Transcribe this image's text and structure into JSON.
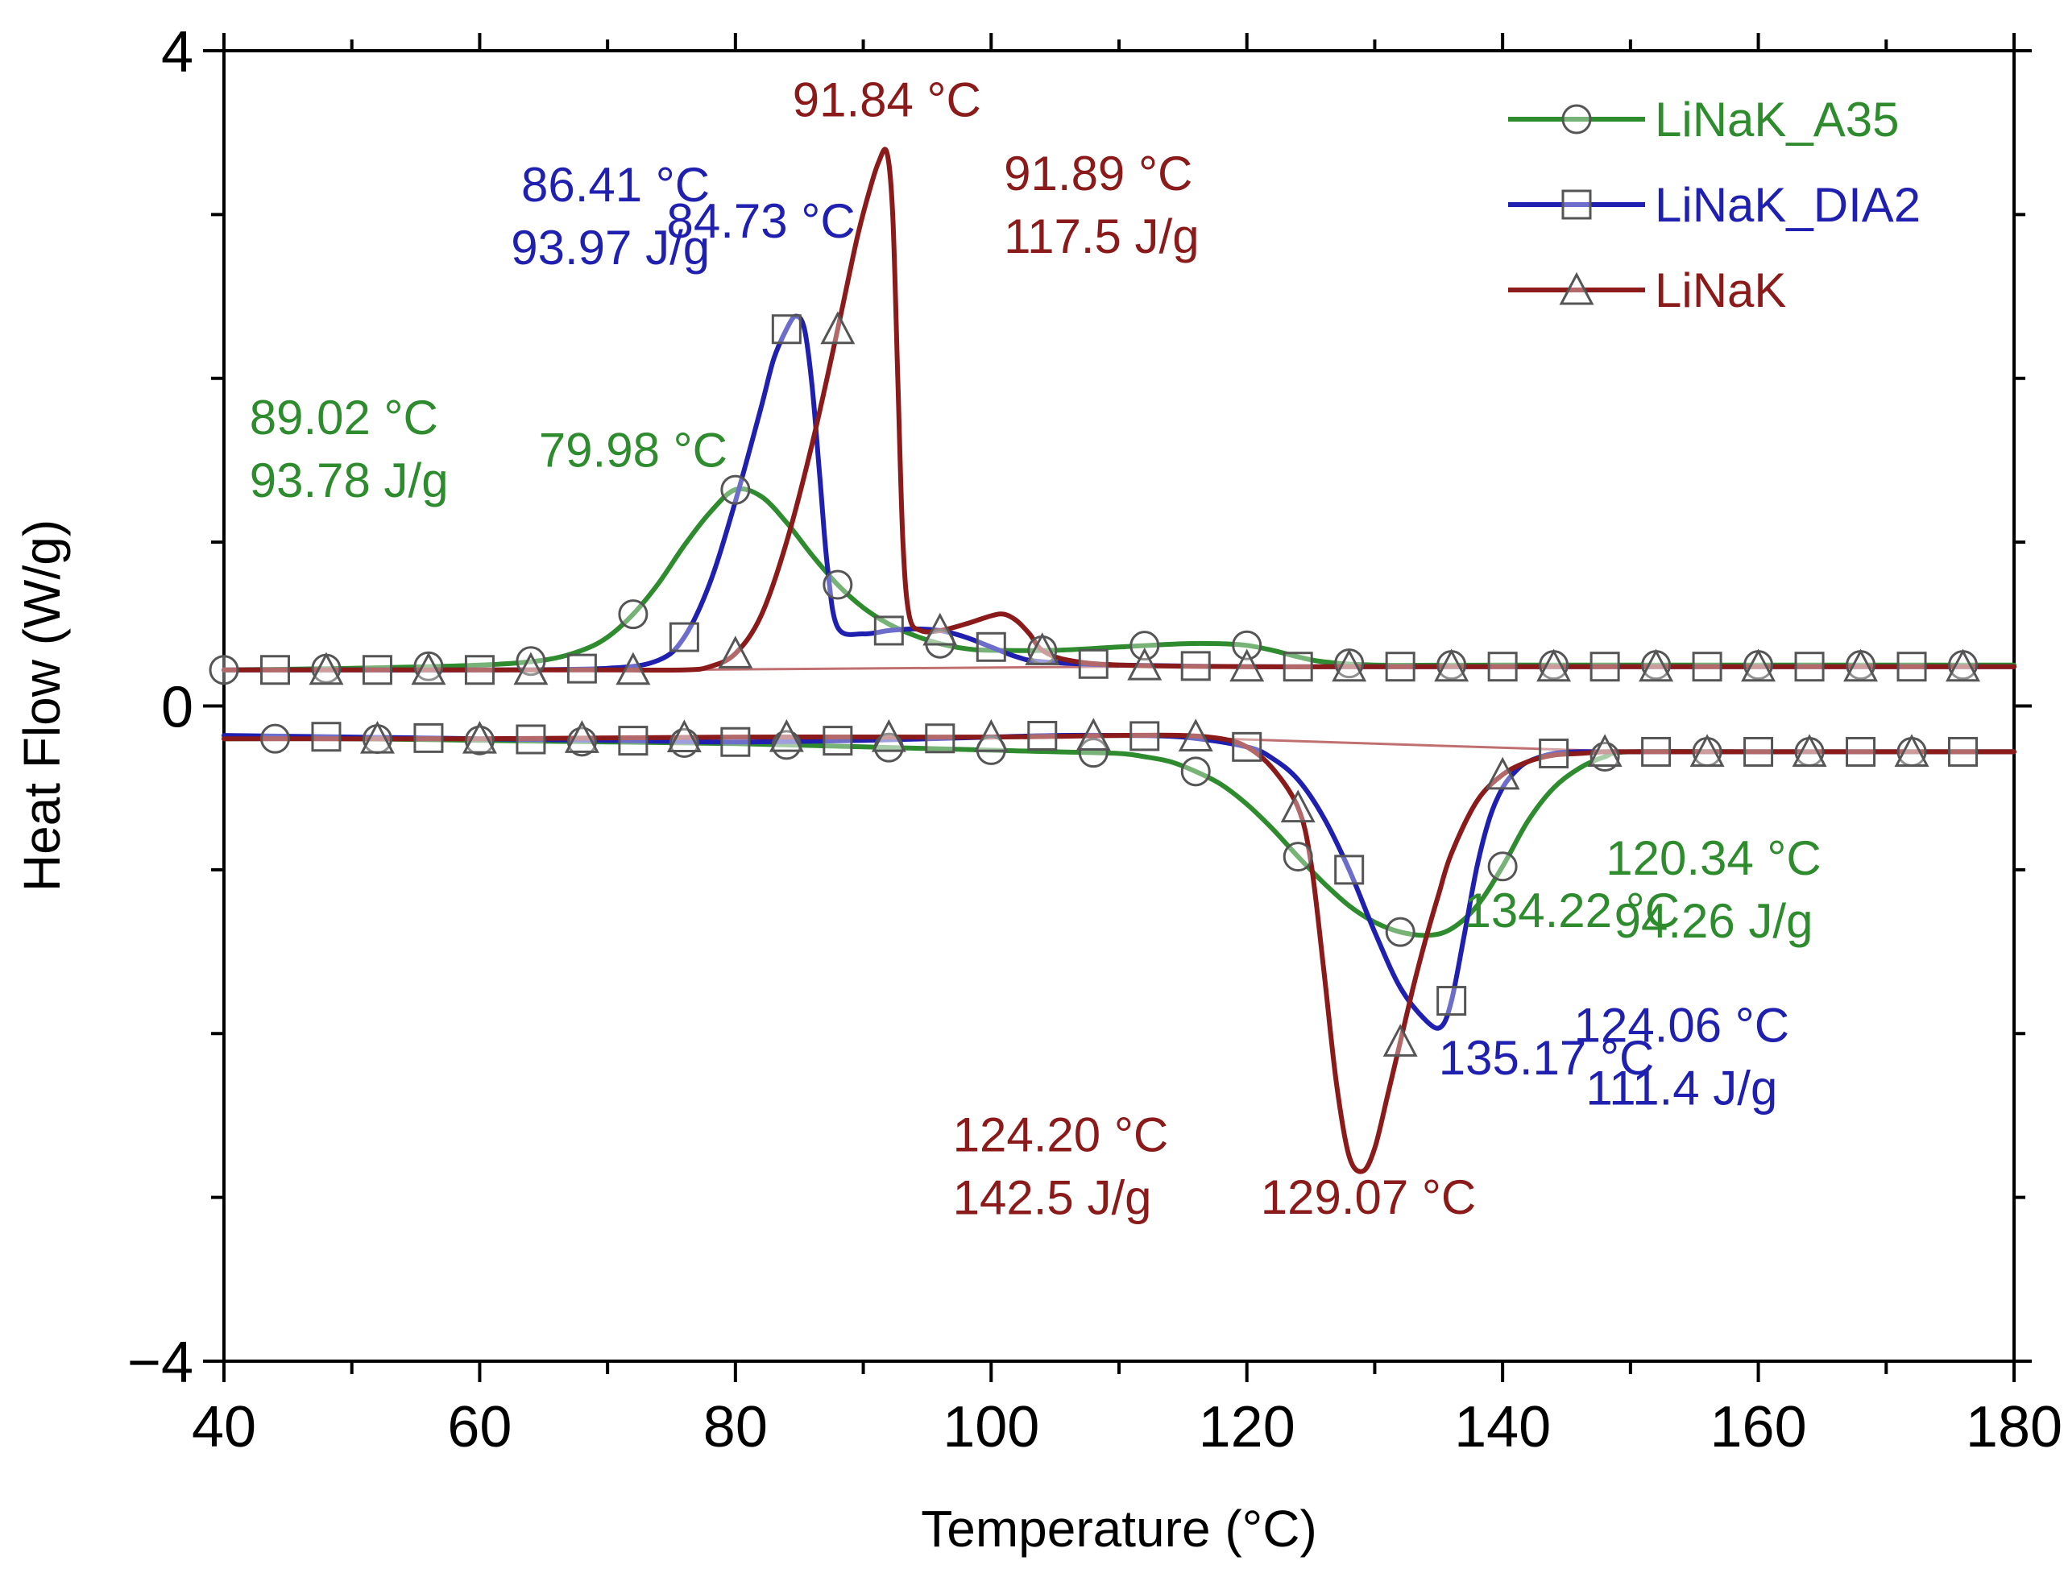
{
  "chart_data": {
    "type": "line",
    "title": "",
    "xlabel": "Temperature (°C)",
    "ylabel": "Heat Flow (W/g)",
    "xlim": [
      40,
      180
    ],
    "ylim": [
      -4,
      4
    ],
    "x_ticks": [
      "40",
      "60",
      "80",
      "100",
      "120",
      "140",
      "160",
      "180"
    ],
    "y_ticks": [
      "−4",
      "0",
      "4"
    ],
    "legend": {
      "position": "top-right"
    },
    "series": [
      {
        "name": "LiNaK_A35",
        "color": "#2e8b2e",
        "marker": "circle",
        "cooling": {
          "x": [
            40,
            50,
            60,
            65,
            68,
            70,
            72,
            74,
            76,
            78,
            79.98,
            82,
            84,
            86,
            88,
            90,
            92,
            94,
            96,
            98,
            100,
            105,
            110,
            115,
            118,
            120,
            122,
            124,
            126,
            130,
            140,
            150,
            160,
            170,
            180
          ],
          "y": [
            0.22,
            0.23,
            0.25,
            0.28,
            0.34,
            0.42,
            0.56,
            0.75,
            0.98,
            1.18,
            1.32,
            1.28,
            1.12,
            0.92,
            0.74,
            0.6,
            0.5,
            0.43,
            0.38,
            0.35,
            0.34,
            0.34,
            0.36,
            0.38,
            0.38,
            0.37,
            0.34,
            0.3,
            0.27,
            0.25,
            0.25,
            0.25,
            0.25,
            0.25,
            0.25
          ]
        },
        "heating": {
          "x": [
            40,
            50,
            60,
            70,
            80,
            90,
            100,
            105,
            110,
            112,
            114,
            116,
            118,
            120,
            122,
            124,
            126,
            128,
            130,
            132,
            134.22,
            136,
            138,
            140,
            142,
            144,
            146,
            148,
            150,
            160,
            170,
            180
          ],
          "y": [
            -0.2,
            -0.2,
            -0.21,
            -0.22,
            -0.23,
            -0.25,
            -0.27,
            -0.28,
            -0.29,
            -0.31,
            -0.34,
            -0.4,
            -0.48,
            -0.6,
            -0.75,
            -0.92,
            -1.08,
            -1.22,
            -1.32,
            -1.38,
            -1.4,
            -1.36,
            -1.22,
            -0.98,
            -0.7,
            -0.5,
            -0.38,
            -0.31,
            -0.28,
            -0.28,
            -0.28,
            -0.28
          ]
        }
      },
      {
        "name": "LiNaK_DIA2",
        "color": "#1f1fb0",
        "marker": "square",
        "cooling": {
          "x": [
            40,
            50,
            60,
            70,
            74,
            76,
            78,
            80,
            82,
            83,
            84,
            84.73,
            85.4,
            86,
            86.6,
            87.2,
            88,
            90,
            92,
            94,
            96,
            98,
            100,
            102,
            104,
            110,
            120,
            130,
            140,
            150,
            160,
            170,
            180
          ],
          "y": [
            0.22,
            0.22,
            0.22,
            0.23,
            0.28,
            0.42,
            0.75,
            1.25,
            1.82,
            2.12,
            2.3,
            2.38,
            2.3,
            1.95,
            1.4,
            0.85,
            0.48,
            0.44,
            0.46,
            0.47,
            0.46,
            0.42,
            0.36,
            0.3,
            0.27,
            0.25,
            0.24,
            0.24,
            0.24,
            0.24,
            0.24,
            0.24,
            0.24
          ]
        },
        "heating": {
          "x": [
            40,
            50,
            60,
            70,
            80,
            90,
            100,
            105,
            110,
            115,
            120,
            122,
            124,
            126,
            128,
            130,
            132,
            134,
            135.17,
            136,
            137,
            138,
            139,
            140,
            141,
            142,
            144,
            146,
            148,
            150,
            160,
            170,
            180
          ],
          "y": [
            -0.18,
            -0.19,
            -0.2,
            -0.21,
            -0.22,
            -0.21,
            -0.19,
            -0.18,
            -0.18,
            -0.19,
            -0.25,
            -0.32,
            -0.45,
            -0.68,
            -1.0,
            -1.38,
            -1.72,
            -1.92,
            -1.96,
            -1.8,
            -1.4,
            -0.98,
            -0.68,
            -0.5,
            -0.4,
            -0.34,
            -0.29,
            -0.28,
            -0.28,
            -0.28,
            -0.28,
            -0.28,
            -0.28
          ]
        }
      },
      {
        "name": "LiNaK",
        "color": "#8b1a1a",
        "marker": "triangle",
        "cooling": {
          "x": [
            40,
            50,
            60,
            70,
            76,
            78,
            80,
            82,
            84,
            86,
            88,
            89.5,
            90.5,
            91.2,
            91.84,
            92.3,
            92.7,
            93.1,
            93.6,
            94.5,
            96,
            98,
            100,
            101,
            102,
            103,
            104,
            106,
            110,
            120,
            130,
            140,
            150,
            160,
            170,
            180
          ],
          "y": [
            0.22,
            0.22,
            0.22,
            0.22,
            0.22,
            0.24,
            0.32,
            0.55,
            1.0,
            1.6,
            2.3,
            2.85,
            3.15,
            3.32,
            3.38,
            3.0,
            2.0,
            1.0,
            0.55,
            0.46,
            0.46,
            0.5,
            0.55,
            0.56,
            0.52,
            0.44,
            0.34,
            0.28,
            0.25,
            0.24,
            0.24,
            0.24,
            0.24,
            0.24,
            0.24,
            0.24
          ]
        },
        "heating": {
          "x": [
            40,
            60,
            80,
            100,
            110,
            115,
            118,
            120,
            122,
            124,
            125,
            126,
            127,
            128,
            129.07,
            130,
            131,
            132,
            133,
            134,
            135,
            136,
            138,
            140,
            142,
            144,
            146,
            148,
            150,
            160,
            170,
            180
          ],
          "y": [
            -0.2,
            -0.2,
            -0.19,
            -0.19,
            -0.18,
            -0.18,
            -0.2,
            -0.25,
            -0.38,
            -0.62,
            -0.95,
            -1.6,
            -2.3,
            -2.75,
            -2.84,
            -2.7,
            -2.38,
            -2.05,
            -1.72,
            -1.42,
            -1.15,
            -0.9,
            -0.58,
            -0.42,
            -0.34,
            -0.3,
            -0.29,
            -0.28,
            -0.28,
            -0.28,
            -0.28,
            -0.28
          ]
        }
      }
    ],
    "baselines": [
      {
        "color": "#c07070",
        "segments": [
          [
            [
              74,
              0.22
            ],
            [
              110,
              0.24
            ]
          ],
          [
            [
              110,
              -0.18
            ],
            [
              150,
              -0.28
            ]
          ]
        ]
      }
    ],
    "annotations": [
      {
        "series": "LiNaK",
        "lines": [
          "91.84 °C"
        ],
        "x": 91.84,
        "y": 3.6,
        "anchor": "middle"
      },
      {
        "series": "LiNaK",
        "lines": [
          "91.89 °C",
          "117.5  J/g"
        ],
        "x": 101,
        "y": 3.15,
        "anchor": "start"
      },
      {
        "series": "LiNaK_DIA2",
        "lines": [
          "86.41 °C",
          "93.97 J/g"
        ],
        "x": 78,
        "y": 3.08,
        "anchor": "end"
      },
      {
        "series": "LiNaK_DIA2",
        "lines": [
          "84.73 °C"
        ],
        "x": 82,
        "y": 2.86,
        "anchor": "middle"
      },
      {
        "series": "LiNaK_A35",
        "lines": [
          "89.02 °C",
          "93.78 J/g"
        ],
        "x": 42,
        "y": 1.66,
        "anchor": "start"
      },
      {
        "series": "LiNaK_A35",
        "lines": [
          "79.98 °C"
        ],
        "x": 72,
        "y": 1.46,
        "anchor": "middle"
      },
      {
        "series": "LiNaK_A35",
        "lines": [
          "134.22 °C"
        ],
        "x": 137,
        "y": -1.35,
        "anchor": "start"
      },
      {
        "series": "LiNaK_A35",
        "lines": [
          "120.34 °C",
          "94.26  J/g"
        ],
        "x": 156.5,
        "y": -1.03,
        "anchor": "middle"
      },
      {
        "series": "LiNaK_DIA2",
        "lines": [
          "135.17 °C"
        ],
        "x": 135,
        "y": -2.25,
        "anchor": "start"
      },
      {
        "series": "LiNaK_DIA2",
        "lines": [
          "124.06 °C",
          "111.4  J/g"
        ],
        "x": 154,
        "y": -2.05,
        "anchor": "middle"
      },
      {
        "series": "LiNaK",
        "lines": [
          "124.20 °C",
          "142.5  J/g"
        ],
        "x": 97,
        "y": -2.72,
        "anchor": "start"
      },
      {
        "series": "LiNaK",
        "lines": [
          "129.07 °C"
        ],
        "x": 129.5,
        "y": -3.1,
        "anchor": "middle"
      }
    ]
  }
}
